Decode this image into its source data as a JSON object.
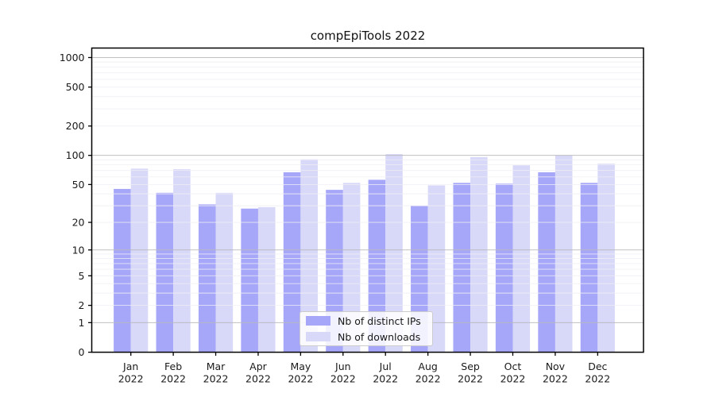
{
  "title": "compEpiTools 2022",
  "chart_data": {
    "type": "bar",
    "title": "compEpiTools 2022",
    "categories": [
      "Jan",
      "Feb",
      "Mar",
      "Apr",
      "May",
      "Jun",
      "Jul",
      "Aug",
      "Sep",
      "Oct",
      "Nov",
      "Dec"
    ],
    "x_sub_label": "2022",
    "series": [
      {
        "name": "Nb of distinct IPs",
        "color": "#a7a7f9",
        "values": [
          45,
          41,
          31,
          28,
          67,
          44,
          56,
          30,
          52,
          51,
          67,
          52
        ]
      },
      {
        "name": "Nb of downloads",
        "color": "#d8d8f9",
        "values": [
          73,
          72,
          41,
          29,
          91,
          52,
          103,
          49,
          96,
          79,
          100,
          82
        ]
      }
    ],
    "xlabel": "",
    "ylabel": "",
    "y_scale": "log1p",
    "y_ticks": [
      0,
      1,
      2,
      5,
      10,
      20,
      50,
      100,
      200,
      500,
      1000
    ],
    "major_grid_values": [
      1,
      10,
      100,
      1000
    ],
    "ylim": [
      0,
      1250
    ],
    "grid": true,
    "legend_position": "lower-center"
  },
  "colors": {
    "axis": "#000000",
    "tick_text": "#1a1a1a",
    "major_grid": "#b9b9bd",
    "minor_grid": "#efeff4",
    "legend_border": "#cccccc"
  }
}
